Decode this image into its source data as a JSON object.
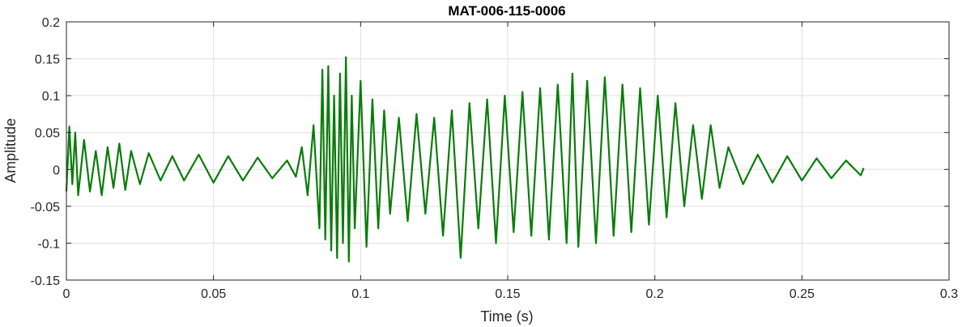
{
  "chart_data": {
    "type": "line",
    "title": "MAT-006-115-0006",
    "xlabel": "Time (s)",
    "ylabel": "Amplitude",
    "xlim": [
      0,
      0.3
    ],
    "ylim": [
      -0.15,
      0.2
    ],
    "xticks": [
      0,
      0.05,
      0.1,
      0.15,
      0.2,
      0.25,
      0.3
    ],
    "xtick_labels": [
      "0",
      "0.05",
      "0.1",
      "0.15",
      "0.2",
      "0.25",
      "0.3"
    ],
    "yticks": [
      -0.15,
      -0.1,
      -0.05,
      0,
      0.05,
      0.1,
      0.15,
      0.2
    ],
    "ytick_labels": [
      "-0.15",
      "-0.1",
      "-0.05",
      "0",
      "0.05",
      "0.1",
      "0.15",
      "0.2"
    ],
    "grid": true,
    "series": [
      {
        "color": "#0a7c0a",
        "x": [
          0,
          0.001,
          0.002,
          0.003,
          0.004,
          0.006,
          0.008,
          0.01,
          0.012,
          0.014,
          0.016,
          0.018,
          0.02,
          0.022,
          0.025,
          0.028,
          0.032,
          0.036,
          0.04,
          0.045,
          0.05,
          0.055,
          0.06,
          0.065,
          0.07,
          0.075,
          0.078,
          0.08,
          0.082,
          0.084,
          0.086,
          0.087,
          0.088,
          0.089,
          0.09,
          0.091,
          0.092,
          0.093,
          0.094,
          0.095,
          0.096,
          0.097,
          0.098,
          0.1,
          0.102,
          0.104,
          0.106,
          0.108,
          0.11,
          0.113,
          0.116,
          0.119,
          0.122,
          0.125,
          0.128,
          0.131,
          0.134,
          0.137,
          0.14,
          0.143,
          0.146,
          0.149,
          0.152,
          0.155,
          0.158,
          0.161,
          0.164,
          0.167,
          0.17,
          0.172,
          0.174,
          0.177,
          0.18,
          0.183,
          0.186,
          0.189,
          0.192,
          0.195,
          0.198,
          0.201,
          0.204,
          0.207,
          0.21,
          0.213,
          0.216,
          0.219,
          0.222,
          0.225,
          0.23,
          0.235,
          0.24,
          0.245,
          0.25,
          0.255,
          0.26,
          0.265,
          0.27,
          0.271
        ],
        "y": [
          -0.03,
          0.058,
          -0.02,
          0.05,
          -0.035,
          0.04,
          -0.03,
          0.025,
          -0.035,
          0.03,
          -0.025,
          0.035,
          -0.028,
          0.025,
          -0.02,
          0.022,
          -0.015,
          0.018,
          -0.015,
          0.02,
          -0.018,
          0.018,
          -0.015,
          0.016,
          -0.012,
          0.012,
          -0.01,
          0.03,
          -0.035,
          0.06,
          -0.08,
          0.135,
          -0.095,
          0.14,
          -0.11,
          0.1,
          -0.12,
          0.13,
          -0.1,
          0.152,
          -0.125,
          0.1,
          -0.08,
          0.12,
          -0.105,
          0.095,
          -0.08,
          0.08,
          -0.06,
          0.07,
          -0.07,
          0.075,
          -0.06,
          0.07,
          -0.09,
          0.08,
          -0.12,
          0.09,
          -0.08,
          0.095,
          -0.1,
          0.1,
          -0.085,
          0.105,
          -0.09,
          0.11,
          -0.095,
          0.115,
          -0.1,
          0.13,
          -0.105,
          0.12,
          -0.1,
          0.125,
          -0.09,
          0.115,
          -0.085,
          0.11,
          -0.075,
          0.1,
          -0.065,
          0.09,
          -0.05,
          0.06,
          -0.04,
          0.06,
          -0.025,
          0.03,
          -0.02,
          0.02,
          -0.018,
          0.018,
          -0.015,
          0.015,
          -0.012,
          0.012,
          -0.008,
          0.002
        ]
      }
    ]
  }
}
